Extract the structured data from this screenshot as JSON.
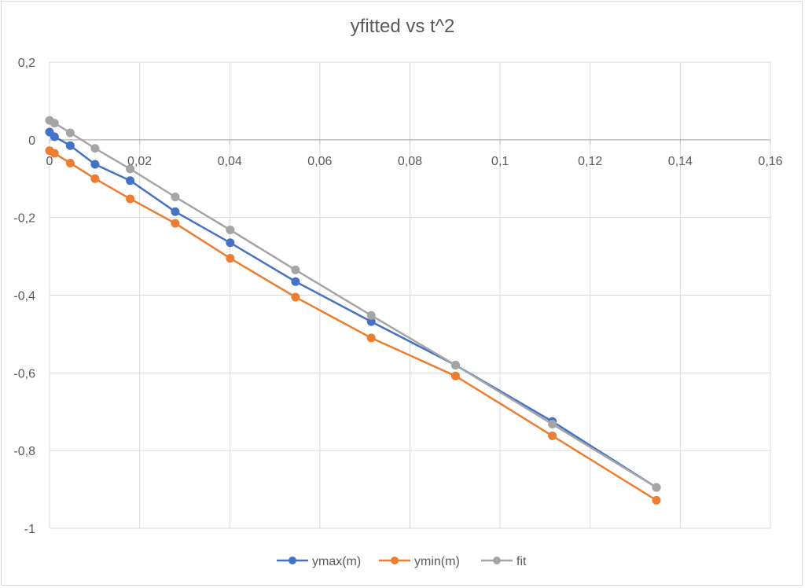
{
  "chart_data": {
    "type": "scatter",
    "title": "yfitted vs t^2",
    "xlabel": "",
    "ylabel": "",
    "xlim": [
      0,
      0.16
    ],
    "ylim": [
      -1,
      0.2
    ],
    "x_ticks": [
      "0",
      "0,02",
      "0,04",
      "0,06",
      "0,08",
      "0,1",
      "0,12",
      "0,14",
      "0,16"
    ],
    "y_ticks": [
      "0,2",
      "0",
      "-0,2",
      "-0,4",
      "-0,6",
      "-0,8",
      "-1"
    ],
    "x_tick_values": [
      0,
      0.02,
      0.04,
      0.06,
      0.08,
      0.1,
      0.12,
      0.14,
      0.16
    ],
    "y_tick_values": [
      0.2,
      0,
      -0.2,
      -0.4,
      -0.6,
      -0.8,
      -1
    ],
    "grid": true,
    "legend_position": "bottom",
    "series": [
      {
        "name": "ymax(m)",
        "color": "#4472c4",
        "x": [
          0,
          0.0011,
          0.0046,
          0.0101,
          0.0179,
          0.0279,
          0.0401,
          0.0546,
          0.0714,
          0.0901,
          0.1116,
          0.1347
        ],
        "y": [
          0.02,
          0.008,
          -0.015,
          -0.063,
          -0.105,
          -0.185,
          -0.265,
          -0.365,
          -0.468,
          -0.58,
          -0.725,
          -0.895
        ]
      },
      {
        "name": "ymin(m)",
        "color": "#ed7d31",
        "x": [
          0,
          0.0011,
          0.0046,
          0.0101,
          0.0179,
          0.0279,
          0.0401,
          0.0546,
          0.0714,
          0.0901,
          0.1116,
          0.1347
        ],
        "y": [
          -0.028,
          -0.035,
          -0.06,
          -0.1,
          -0.152,
          -0.215,
          -0.305,
          -0.405,
          -0.51,
          -0.608,
          -0.762,
          -0.928
        ]
      },
      {
        "name": "fit",
        "color": "#a5a5a5",
        "x": [
          0,
          0.0011,
          0.0046,
          0.0101,
          0.0179,
          0.0279,
          0.0401,
          0.0546,
          0.0714,
          0.0901,
          0.1116,
          0.1347
        ],
        "y": [
          0.05,
          0.043,
          0.018,
          -0.022,
          -0.075,
          -0.147,
          -0.232,
          -0.335,
          -0.452,
          -0.58,
          -0.732,
          -0.895
        ]
      }
    ]
  }
}
